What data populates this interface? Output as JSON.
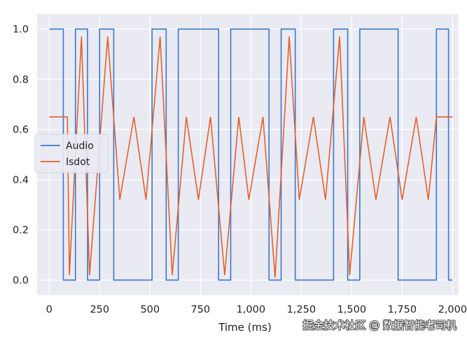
{
  "chart_data": {
    "type": "line",
    "title": "",
    "xlabel": "Time (ms)",
    "ylabel": "",
    "xlim": [
      -60,
      2030
    ],
    "ylim": [
      -0.06,
      1.06
    ],
    "x_ticks": [
      0,
      250,
      500,
      750,
      1000,
      1250,
      1500,
      1750,
      2000
    ],
    "x_tick_labels": [
      "0",
      "250",
      "500",
      "750",
      "1,000",
      "1,250",
      "1,500",
      "1,750",
      "2,000"
    ],
    "y_ticks": [
      0.0,
      0.2,
      0.4,
      0.6,
      0.8,
      1.0
    ],
    "y_tick_labels": [
      "0.0",
      "0.2",
      "0.4",
      "0.6",
      "0.8",
      "1.0"
    ],
    "grid": true,
    "legend_position": "center-left",
    "series": [
      {
        "name": "Audio",
        "color": "#3a78c9",
        "step": true,
        "points": [
          [
            0,
            1
          ],
          [
            70,
            1
          ],
          [
            70,
            0
          ],
          [
            130,
            0
          ],
          [
            130,
            1
          ],
          [
            190,
            1
          ],
          [
            190,
            0
          ],
          [
            250,
            0
          ],
          [
            250,
            1
          ],
          [
            320,
            1
          ],
          [
            320,
            0
          ],
          [
            510,
            0
          ],
          [
            510,
            1
          ],
          [
            580,
            1
          ],
          [
            580,
            0
          ],
          [
            640,
            0
          ],
          [
            640,
            1
          ],
          [
            840,
            1
          ],
          [
            840,
            0
          ],
          [
            900,
            0
          ],
          [
            900,
            1
          ],
          [
            1090,
            1
          ],
          [
            1090,
            0
          ],
          [
            1150,
            0
          ],
          [
            1150,
            1
          ],
          [
            1220,
            1
          ],
          [
            1220,
            0
          ],
          [
            1410,
            0
          ],
          [
            1410,
            1
          ],
          [
            1480,
            1
          ],
          [
            1480,
            0
          ],
          [
            1540,
            0
          ],
          [
            1540,
            1
          ],
          [
            1730,
            1
          ],
          [
            1730,
            0
          ],
          [
            1920,
            0
          ],
          [
            1920,
            1
          ],
          [
            1980,
            1
          ],
          [
            1980,
            0
          ],
          [
            2000,
            0
          ]
        ]
      },
      {
        "name": "Isdot",
        "color": "#e0622e",
        "step": false,
        "points": [
          [
            0,
            0.65
          ],
          [
            90,
            0.65
          ],
          [
            100,
            0.02
          ],
          [
            160,
            0.97
          ],
          [
            200,
            0.02
          ],
          [
            290,
            0.97
          ],
          [
            350,
            0.32
          ],
          [
            420,
            0.65
          ],
          [
            480,
            0.32
          ],
          [
            550,
            0.97
          ],
          [
            610,
            0.02
          ],
          [
            680,
            0.65
          ],
          [
            740,
            0.32
          ],
          [
            800,
            0.65
          ],
          [
            870,
            0.02
          ],
          [
            940,
            0.65
          ],
          [
            990,
            0.32
          ],
          [
            1060,
            0.65
          ],
          [
            1120,
            0.01
          ],
          [
            1190,
            0.97
          ],
          [
            1240,
            0.32
          ],
          [
            1310,
            0.65
          ],
          [
            1370,
            0.32
          ],
          [
            1440,
            0.97
          ],
          [
            1490,
            0.02
          ],
          [
            1560,
            0.65
          ],
          [
            1620,
            0.32
          ],
          [
            1690,
            0.65
          ],
          [
            1750,
            0.32
          ],
          [
            1820,
            0.65
          ],
          [
            1880,
            0.32
          ],
          [
            1920,
            0.65
          ],
          [
            2000,
            0.65
          ]
        ]
      }
    ]
  },
  "watermark": "掘金技术社区 @ 数据智能老司机"
}
